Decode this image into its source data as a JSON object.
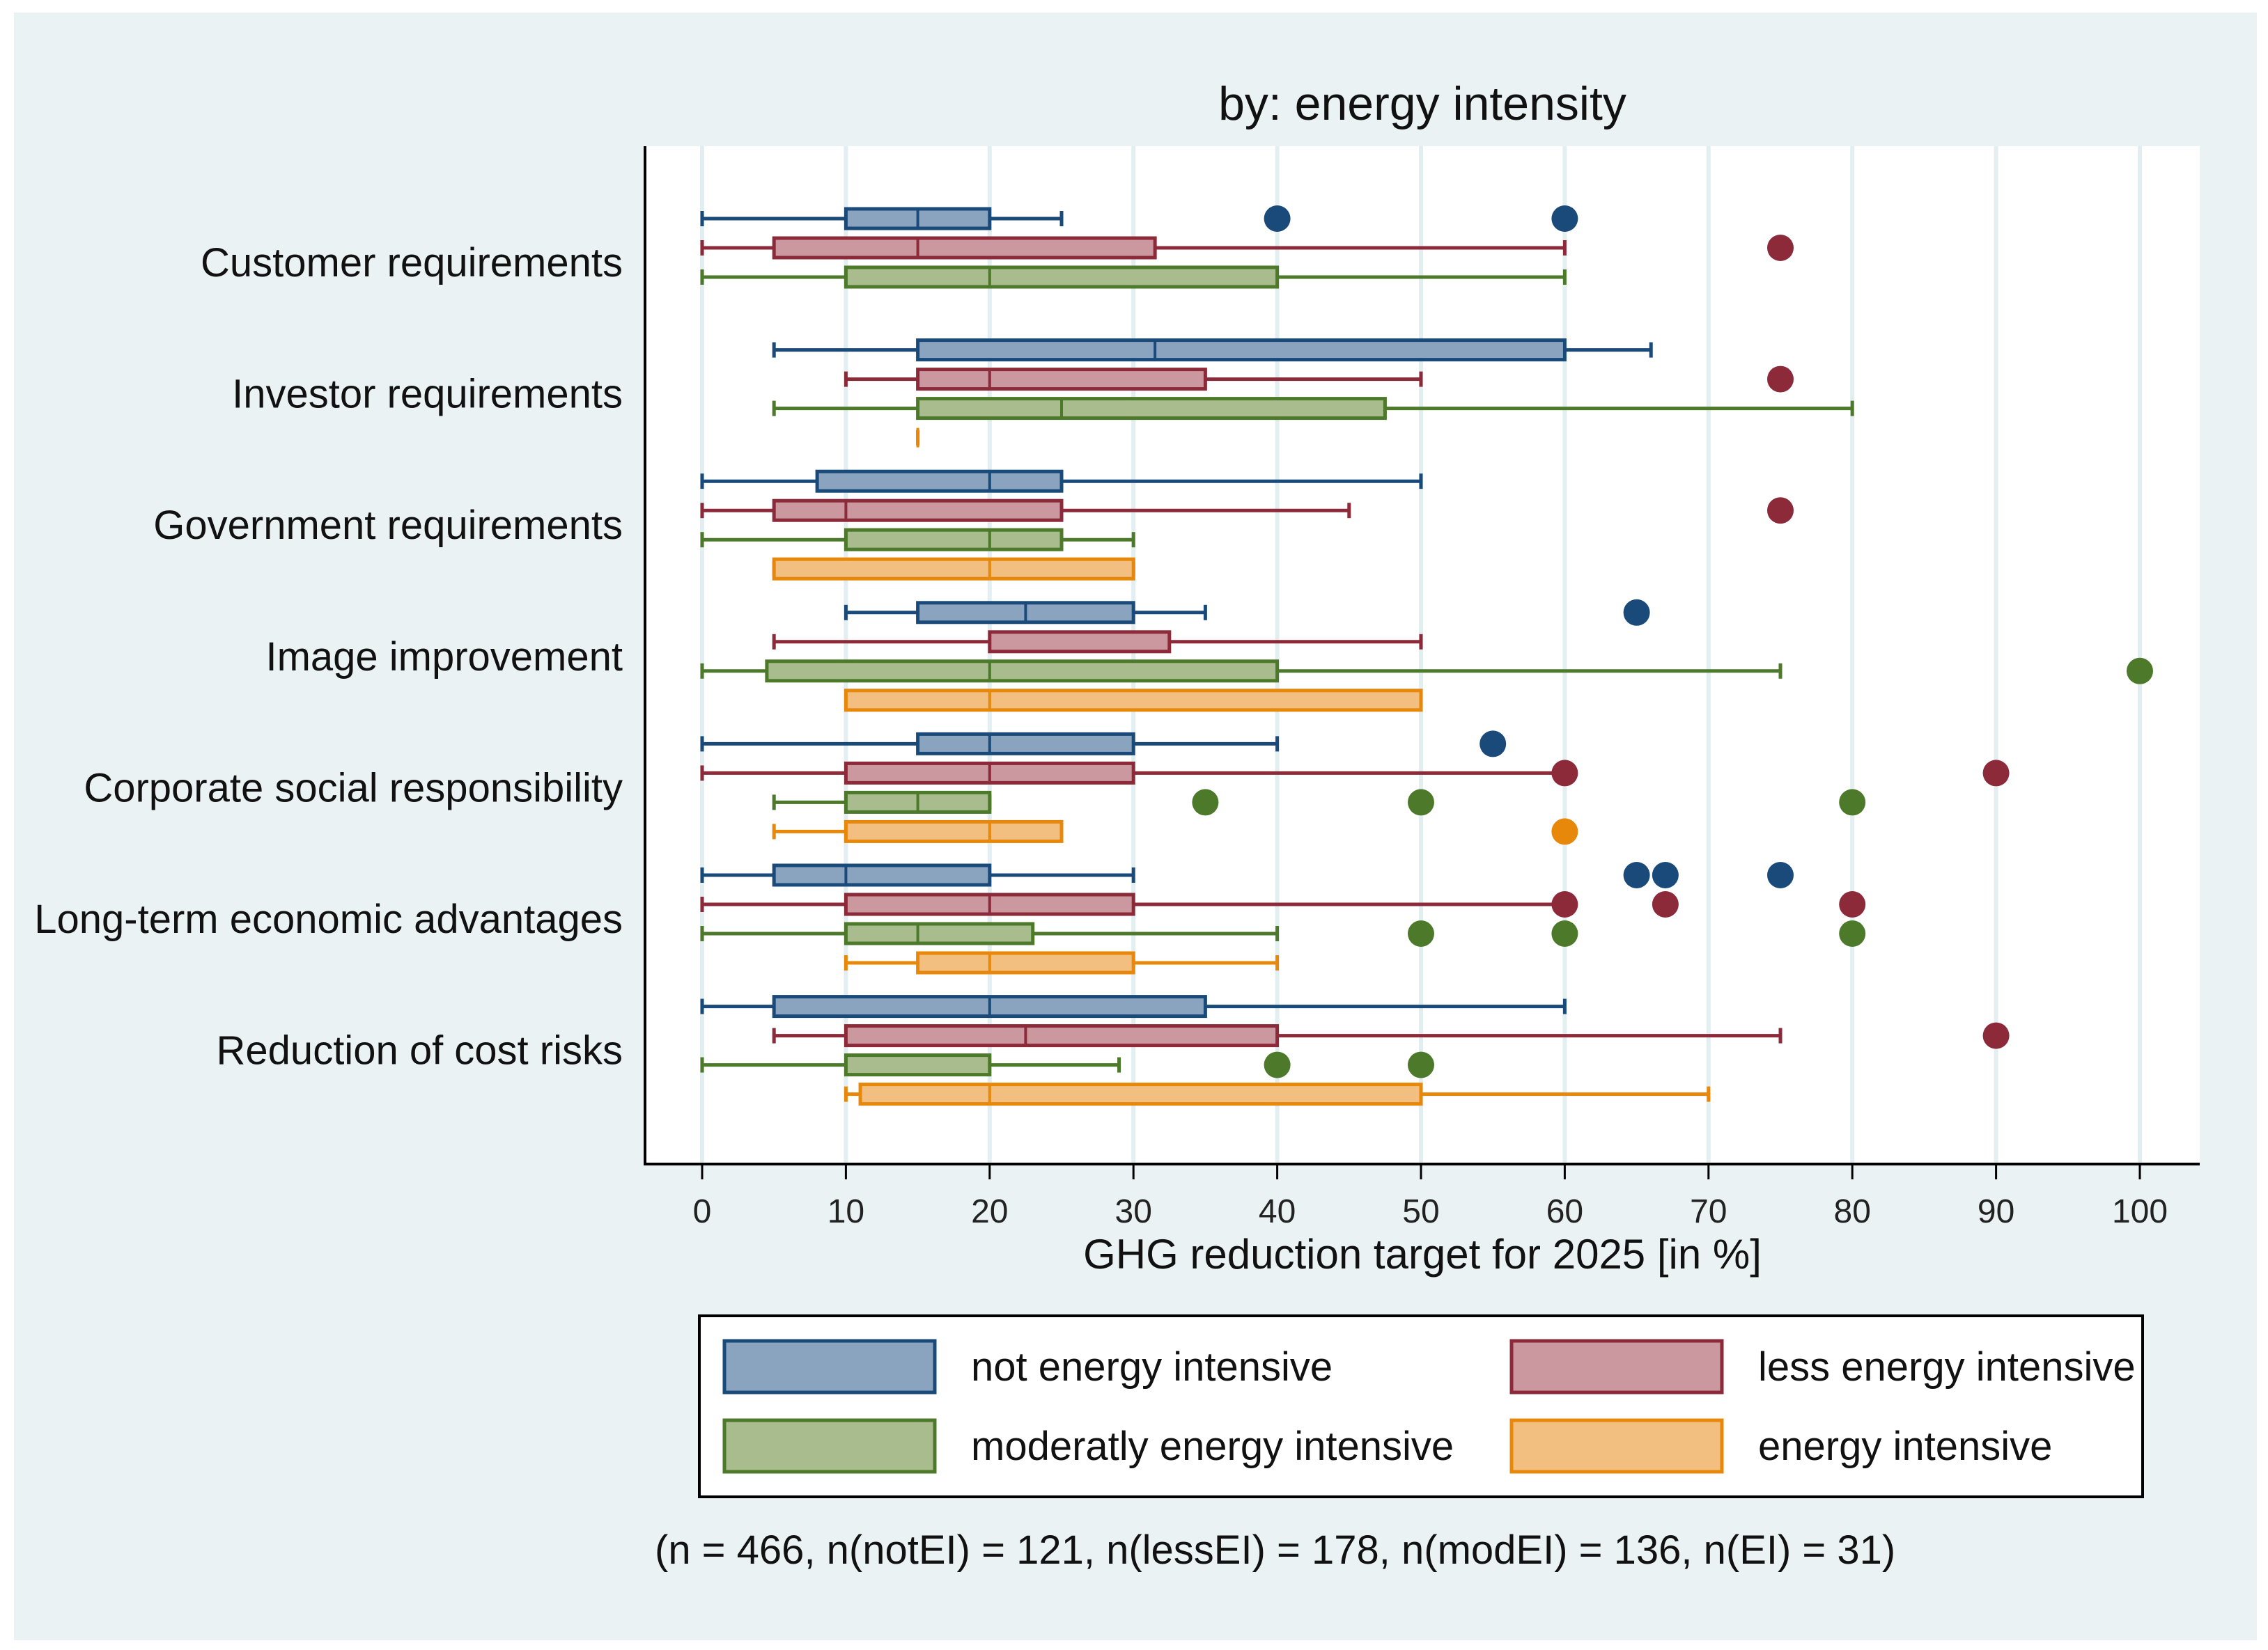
{
  "chart_data": {
    "type": "boxplot",
    "orientation": "horizontal",
    "title": "by: energy intensity",
    "xlabel": "GHG reduction target for 2025 [in %]",
    "xlim": [
      0,
      100
    ],
    "xticks": [
      "0",
      "10",
      "20",
      "30",
      "40",
      "50",
      "60",
      "70",
      "80",
      "90",
      "100"
    ],
    "grid": true,
    "note": "(n = 466, n(notEI) = 121, n(lessEI) = 178, n(modEI) = 136, n(EI) = 31)",
    "legend": {
      "placement": "bottom",
      "entries": [
        {
          "name": "not energy intensive",
          "stroke": "#1a4a7a",
          "fill": "#8aa4c0"
        },
        {
          "name": "less energy intensive",
          "stroke": "#8c2a3a",
          "fill": "#cc98a0"
        },
        {
          "name": "moderatly energy intensive",
          "stroke": "#4c7a2a",
          "fill": "#a8bc8e"
        },
        {
          "name": "energy intensive",
          "stroke": "#e8880a",
          "fill": "#f2bf80"
        }
      ]
    },
    "categories": [
      {
        "label": "Customer requirements",
        "boxes": [
          {
            "series": 0,
            "min": 0,
            "q1": 10,
            "median": 15,
            "q3": 20,
            "max": 25,
            "outliers": [
              40,
              60
            ]
          },
          {
            "series": 1,
            "min": 0,
            "q1": 5,
            "median": 15,
            "q3": 31.5,
            "max": 60,
            "outliers": [
              75
            ]
          },
          {
            "series": 2,
            "min": 0,
            "q1": 10,
            "median": 20,
            "q3": 40,
            "max": 60,
            "outliers": []
          }
        ]
      },
      {
        "label": "Investor requirements",
        "boxes": [
          {
            "series": 0,
            "min": 5,
            "q1": 15,
            "median": 31.5,
            "q3": 60,
            "max": 66,
            "outliers": []
          },
          {
            "series": 1,
            "min": 10,
            "q1": 15,
            "median": 20,
            "q3": 35,
            "max": 50,
            "outliers": [
              75
            ]
          },
          {
            "series": 2,
            "min": 5,
            "q1": 15,
            "median": 25,
            "q3": 47.5,
            "max": 80,
            "outliers": []
          },
          {
            "series": 3,
            "min": 15,
            "q1": 15,
            "median": 15,
            "q3": 15,
            "max": 15,
            "outliers": []
          }
        ]
      },
      {
        "label": "Government requirements",
        "boxes": [
          {
            "series": 0,
            "min": 0,
            "q1": 8,
            "median": 20,
            "q3": 25,
            "max": 50,
            "outliers": []
          },
          {
            "series": 1,
            "min": 0,
            "q1": 5,
            "median": 10,
            "q3": 25,
            "max": 45,
            "outliers": [
              75
            ]
          },
          {
            "series": 2,
            "min": 0,
            "q1": 10,
            "median": 20,
            "q3": 25,
            "max": 30,
            "outliers": []
          },
          {
            "series": 3,
            "min": 5,
            "q1": 5,
            "median": 20,
            "q3": 30,
            "max": 30,
            "outliers": []
          }
        ]
      },
      {
        "label": "Image improvement",
        "boxes": [
          {
            "series": 0,
            "min": 10,
            "q1": 15,
            "median": 22.5,
            "q3": 30,
            "max": 35,
            "outliers": [
              65
            ]
          },
          {
            "series": 1,
            "min": 5,
            "q1": 20,
            "median": 20,
            "q3": 32.5,
            "max": 50,
            "outliers": []
          },
          {
            "series": 2,
            "min": 0,
            "q1": 4.5,
            "median": 20,
            "q3": 40,
            "max": 75,
            "outliers": [
              100
            ]
          },
          {
            "series": 3,
            "min": 10,
            "q1": 10,
            "median": 20,
            "q3": 50,
            "max": 50,
            "outliers": []
          }
        ]
      },
      {
        "label": "Corporate social responsibility",
        "boxes": [
          {
            "series": 0,
            "min": 0,
            "q1": 15,
            "median": 20,
            "q3": 30,
            "max": 40,
            "outliers": [
              55
            ]
          },
          {
            "series": 1,
            "min": 0,
            "q1": 10,
            "median": 20,
            "q3": 30,
            "max": 60,
            "outliers": [
              60,
              90
            ]
          },
          {
            "series": 2,
            "min": 5,
            "q1": 10,
            "median": 15,
            "q3": 20,
            "max": 20,
            "outliers": [
              35,
              50,
              80
            ]
          },
          {
            "series": 3,
            "min": 5,
            "q1": 10,
            "median": 20,
            "q3": 25,
            "max": 25,
            "outliers": [
              60
            ]
          }
        ]
      },
      {
        "label": "Long-term economic advantages",
        "boxes": [
          {
            "series": 0,
            "min": 0,
            "q1": 5,
            "median": 10,
            "q3": 20,
            "max": 30,
            "outliers": [
              65,
              67,
              75
            ]
          },
          {
            "series": 1,
            "min": 0,
            "q1": 10,
            "median": 20,
            "q3": 30,
            "max": 60,
            "outliers": [
              60,
              67,
              80
            ]
          },
          {
            "series": 2,
            "min": 0,
            "q1": 10,
            "median": 15,
            "q3": 23,
            "max": 40,
            "outliers": [
              50,
              60,
              80
            ]
          },
          {
            "series": 3,
            "min": 10,
            "q1": 15,
            "median": 20,
            "q3": 30,
            "max": 40,
            "outliers": []
          }
        ]
      },
      {
        "label": "Reduction of cost risks",
        "boxes": [
          {
            "series": 0,
            "min": 0,
            "q1": 5,
            "median": 20,
            "q3": 35,
            "max": 60,
            "outliers": []
          },
          {
            "series": 1,
            "min": 5,
            "q1": 10,
            "median": 22.5,
            "q3": 40,
            "max": 75,
            "outliers": [
              90
            ]
          },
          {
            "series": 2,
            "min": 0,
            "q1": 10,
            "median": 20,
            "q3": 20,
            "max": 29,
            "outliers": [
              40,
              50
            ]
          },
          {
            "series": 3,
            "min": 10,
            "q1": 11,
            "median": 20,
            "q3": 50,
            "max": 70,
            "outliers": []
          }
        ]
      }
    ]
  }
}
